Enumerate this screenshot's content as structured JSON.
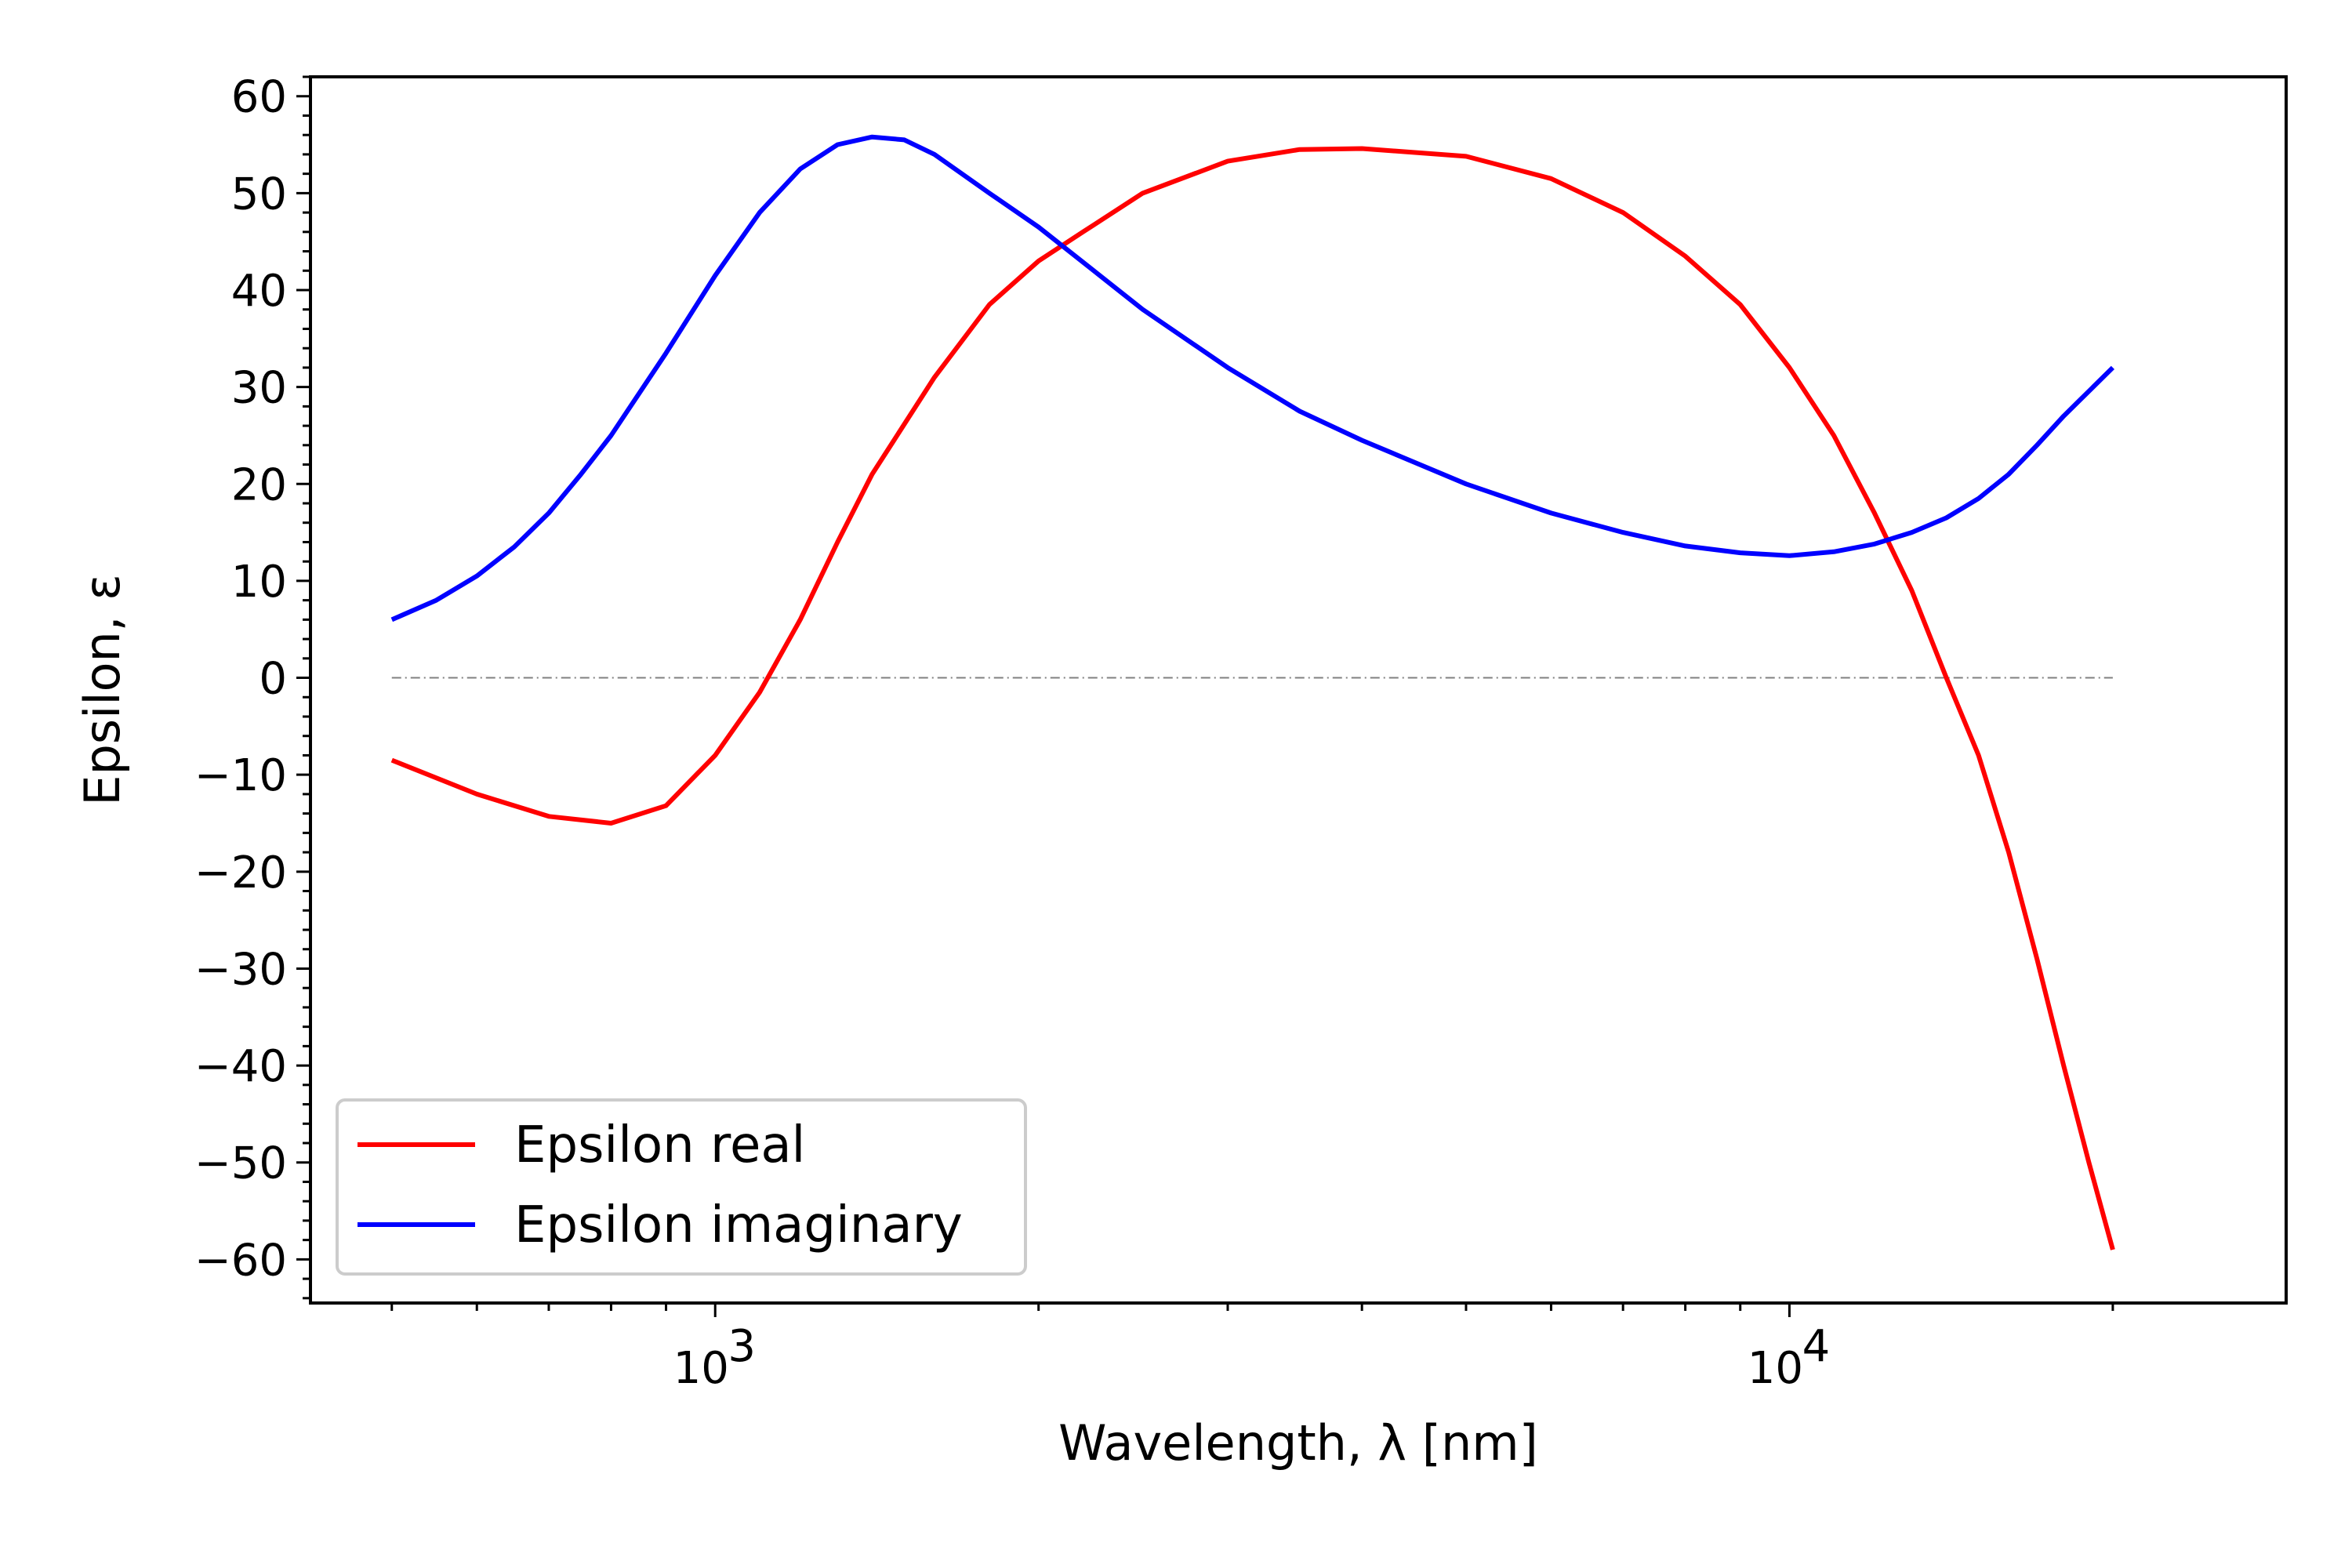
{
  "chart_data": {
    "type": "line",
    "title": "",
    "xlabel": "Wavelength, λ [nm]",
    "ylabel": "Epsilon, ε",
    "xscale": "log",
    "xlim": [
      420,
      29000
    ],
    "ylim": [
      -64.5,
      62
    ],
    "x_ticks": [
      {
        "value": 1000,
        "label": "10",
        "exp": "3"
      },
      {
        "value": 10000,
        "label": "10",
        "exp": "4"
      }
    ],
    "y_ticks": [
      {
        "value": 60,
        "label": "60"
      },
      {
        "value": 50,
        "label": "50"
      },
      {
        "value": 40,
        "label": "40"
      },
      {
        "value": 30,
        "label": "30"
      },
      {
        "value": 20,
        "label": "20"
      },
      {
        "value": 10,
        "label": "10"
      },
      {
        "value": 0,
        "label": "0"
      },
      {
        "value": -10,
        "label": "−10"
      },
      {
        "value": -20,
        "label": "−20"
      },
      {
        "value": -30,
        "label": "−30"
      },
      {
        "value": -40,
        "label": "−40"
      },
      {
        "value": -50,
        "label": "−50"
      },
      {
        "value": -60,
        "label": "−60"
      }
    ],
    "reference_line": {
      "y": 0,
      "x_range": [
        500,
        20000
      ],
      "color": "#808080",
      "style": "dash-dot"
    },
    "legend_position": "lower-left",
    "grid": false,
    "series": [
      {
        "name": "Epsilon real",
        "color": "#ff0000",
        "points": [
          [
            500,
            -8.5
          ],
          [
            600,
            -12.0
          ],
          [
            700,
            -14.3
          ],
          [
            800,
            -15.0
          ],
          [
            900,
            -13.2
          ],
          [
            1000,
            -8.0
          ],
          [
            1100,
            -1.5
          ],
          [
            1200,
            6.0
          ],
          [
            1300,
            14.0
          ],
          [
            1400,
            21.0
          ],
          [
            1600,
            31.0
          ],
          [
            1800,
            38.5
          ],
          [
            2000,
            43.0
          ],
          [
            2200,
            46.0
          ],
          [
            2500,
            50.0
          ],
          [
            3000,
            53.3
          ],
          [
            3500,
            54.5
          ],
          [
            4000,
            54.6
          ],
          [
            5000,
            53.8
          ],
          [
            6000,
            51.5
          ],
          [
            7000,
            48.0
          ],
          [
            8000,
            43.5
          ],
          [
            9000,
            38.5
          ],
          [
            10000,
            32.0
          ],
          [
            11000,
            25.0
          ],
          [
            12000,
            17.0
          ],
          [
            13000,
            9.0
          ],
          [
            14000,
            0.0
          ],
          [
            15000,
            -8.0
          ],
          [
            16000,
            -18.0
          ],
          [
            17000,
            -29.0
          ],
          [
            18000,
            -40.0
          ],
          [
            19000,
            -50.0
          ],
          [
            20000,
            -59.0
          ]
        ]
      },
      {
        "name": "Epsilon imaginary",
        "color": "#0000ff",
        "points": [
          [
            500,
            6.0
          ],
          [
            550,
            8.0
          ],
          [
            600,
            10.5
          ],
          [
            650,
            13.5
          ],
          [
            700,
            17.0
          ],
          [
            750,
            21.0
          ],
          [
            800,
            25.0
          ],
          [
            900,
            33.5
          ],
          [
            1000,
            41.5
          ],
          [
            1100,
            48.0
          ],
          [
            1200,
            52.5
          ],
          [
            1300,
            55.0
          ],
          [
            1400,
            55.8
          ],
          [
            1500,
            55.5
          ],
          [
            1600,
            54.0
          ],
          [
            1800,
            50.0
          ],
          [
            2000,
            46.5
          ],
          [
            2500,
            38.0
          ],
          [
            3000,
            32.0
          ],
          [
            3500,
            27.5
          ],
          [
            4000,
            24.5
          ],
          [
            5000,
            20.0
          ],
          [
            6000,
            17.0
          ],
          [
            7000,
            15.0
          ],
          [
            8000,
            13.6
          ],
          [
            9000,
            12.9
          ],
          [
            10000,
            12.6
          ],
          [
            11000,
            13.0
          ],
          [
            12000,
            13.8
          ],
          [
            13000,
            15.0
          ],
          [
            14000,
            16.5
          ],
          [
            15000,
            18.5
          ],
          [
            16000,
            21.0
          ],
          [
            17000,
            24.0
          ],
          [
            18000,
            27.0
          ],
          [
            20000,
            32.0
          ]
        ]
      }
    ]
  }
}
